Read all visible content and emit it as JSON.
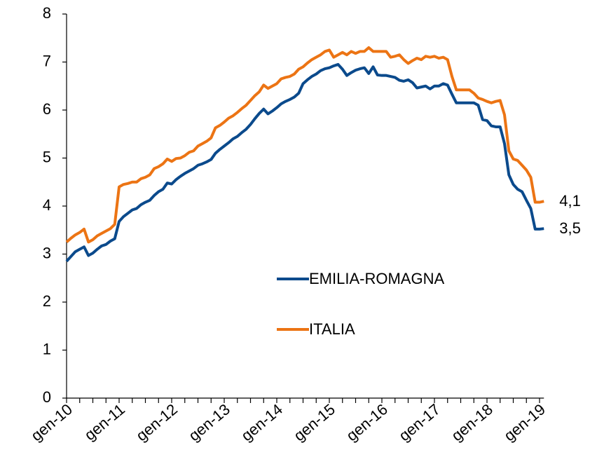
{
  "chart_data": {
    "type": "line",
    "categories": [
      "gen-10",
      null,
      null,
      null,
      null,
      null,
      null,
      null,
      null,
      null,
      null,
      null,
      "gen-11",
      null,
      null,
      null,
      null,
      null,
      null,
      null,
      null,
      null,
      null,
      null,
      "gen-12",
      null,
      null,
      null,
      null,
      null,
      null,
      null,
      null,
      null,
      null,
      null,
      "gen-13",
      null,
      null,
      null,
      null,
      null,
      null,
      null,
      null,
      null,
      null,
      null,
      "gen-14",
      null,
      null,
      null,
      null,
      null,
      null,
      null,
      null,
      null,
      null,
      null,
      "gen-15",
      null,
      null,
      null,
      null,
      null,
      null,
      null,
      null,
      null,
      null,
      null,
      "gen-16",
      null,
      null,
      null,
      null,
      null,
      null,
      null,
      null,
      null,
      null,
      null,
      "gen-17",
      null,
      null,
      null,
      null,
      null,
      null,
      null,
      null,
      null,
      null,
      null,
      "gen-18",
      null,
      null,
      null,
      null,
      null,
      null,
      null,
      null,
      null,
      null,
      null,
      "gen-19",
      null
    ],
    "series": [
      {
        "name": "EMILIA-ROMAGNA",
        "color": "#0b4a8c",
        "values": [
          2.85,
          2.95,
          3.05,
          3.1,
          3.15,
          2.97,
          3.02,
          3.1,
          3.17,
          3.2,
          3.27,
          3.32,
          3.68,
          3.78,
          3.85,
          3.92,
          3.95,
          4.03,
          4.08,
          4.12,
          4.22,
          4.3,
          4.35,
          4.48,
          4.46,
          4.55,
          4.62,
          4.68,
          4.73,
          4.78,
          4.85,
          4.88,
          4.92,
          4.97,
          5.1,
          5.18,
          5.25,
          5.32,
          5.4,
          5.45,
          5.53,
          5.6,
          5.7,
          5.82,
          5.93,
          6.02,
          5.92,
          5.98,
          6.05,
          6.13,
          6.18,
          6.22,
          6.27,
          6.35,
          6.55,
          6.63,
          6.7,
          6.75,
          6.82,
          6.86,
          6.88,
          6.92,
          6.95,
          6.85,
          6.72,
          6.78,
          6.83,
          6.86,
          6.88,
          6.76,
          6.9,
          6.73,
          6.72,
          6.72,
          6.7,
          6.68,
          6.62,
          6.6,
          6.63,
          6.57,
          6.46,
          6.48,
          6.5,
          6.44,
          6.5,
          6.5,
          6.55,
          6.52,
          6.33,
          6.15,
          6.15,
          6.15,
          6.15,
          6.15,
          6.1,
          5.8,
          5.78,
          5.67,
          5.65,
          5.65,
          5.3,
          4.65,
          4.45,
          4.35,
          4.3,
          4.12,
          3.95,
          3.52,
          3.52,
          3.53
        ],
        "value_labels": [
          null,
          null,
          null,
          null,
          null,
          null,
          null,
          null,
          null,
          null,
          null,
          null,
          null,
          null,
          null,
          null,
          null,
          null,
          null,
          null,
          null,
          null,
          null,
          null,
          null,
          null,
          null,
          null,
          null,
          null,
          null,
          null,
          null,
          null,
          null,
          null,
          null,
          null,
          null,
          null,
          null,
          null,
          null,
          null,
          null,
          null,
          null,
          null,
          null,
          null,
          null,
          null,
          null,
          null,
          null,
          null,
          null,
          null,
          null,
          null,
          null,
          null,
          null,
          null,
          null,
          null,
          null,
          null,
          null,
          null,
          null,
          null,
          null,
          null,
          null,
          null,
          null,
          null,
          null,
          null,
          null,
          null,
          null,
          null,
          null,
          null,
          null,
          null,
          null,
          null,
          null,
          null,
          null,
          null,
          null,
          null,
          null,
          null,
          null,
          null,
          null,
          null,
          null,
          null,
          null,
          null,
          null,
          null,
          null,
          "3,5"
        ]
      },
      {
        "name": "ITALIA",
        "color": "#ec7414",
        "values": [
          3.25,
          3.33,
          3.4,
          3.45,
          3.52,
          3.25,
          3.3,
          3.38,
          3.43,
          3.48,
          3.53,
          3.62,
          4.4,
          4.45,
          4.47,
          4.5,
          4.5,
          4.57,
          4.6,
          4.65,
          4.78,
          4.82,
          4.88,
          4.98,
          4.93,
          4.99,
          5.0,
          5.05,
          5.12,
          5.15,
          5.25,
          5.3,
          5.35,
          5.42,
          5.63,
          5.68,
          5.75,
          5.83,
          5.88,
          5.95,
          6.03,
          6.1,
          6.2,
          6.3,
          6.38,
          6.52,
          6.45,
          6.5,
          6.55,
          6.65,
          6.68,
          6.7,
          6.75,
          6.85,
          6.9,
          6.98,
          7.05,
          7.1,
          7.15,
          7.22,
          7.25,
          7.1,
          7.15,
          7.2,
          7.15,
          7.22,
          7.18,
          7.22,
          7.22,
          7.3,
          7.22,
          7.22,
          7.22,
          7.22,
          7.1,
          7.12,
          7.15,
          7.05,
          6.97,
          7.03,
          7.08,
          7.05,
          7.12,
          7.1,
          7.12,
          7.08,
          7.1,
          7.05,
          6.7,
          6.42,
          6.42,
          6.42,
          6.42,
          6.35,
          6.25,
          6.22,
          6.18,
          6.15,
          6.18,
          6.2,
          5.9,
          5.15,
          4.98,
          4.95,
          4.85,
          4.75,
          4.6,
          4.08,
          4.08,
          4.1
        ],
        "value_labels": [
          null,
          null,
          null,
          null,
          null,
          null,
          null,
          null,
          null,
          null,
          null,
          null,
          null,
          null,
          null,
          null,
          null,
          null,
          null,
          null,
          null,
          null,
          null,
          null,
          null,
          null,
          null,
          null,
          null,
          null,
          null,
          null,
          null,
          null,
          null,
          null,
          null,
          null,
          null,
          null,
          null,
          null,
          null,
          null,
          null,
          null,
          null,
          null,
          null,
          null,
          null,
          null,
          null,
          null,
          null,
          null,
          null,
          null,
          null,
          null,
          null,
          null,
          null,
          null,
          null,
          null,
          null,
          null,
          null,
          null,
          null,
          null,
          null,
          null,
          null,
          null,
          null,
          null,
          null,
          null,
          null,
          null,
          null,
          null,
          null,
          null,
          null,
          null,
          null,
          null,
          null,
          null,
          null,
          null,
          null,
          null,
          null,
          null,
          null,
          null,
          null,
          null,
          null,
          null,
          null,
          null,
          null,
          null,
          null,
          "4,1"
        ]
      }
    ],
    "ylim": [
      0,
      8
    ],
    "yticks": [
      0,
      1,
      2,
      3,
      4,
      5,
      6,
      7,
      8
    ],
    "grid": false,
    "legend": "center"
  }
}
